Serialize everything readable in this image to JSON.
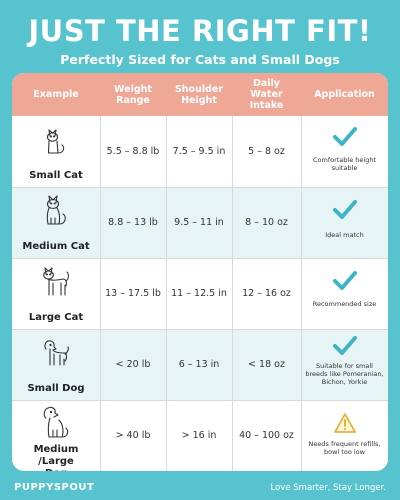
{
  "header": {
    "title": "JUST THE RIGHT FIT!",
    "subtitle": "Perfectly Sized for Cats and Small Dogs"
  },
  "table": {
    "columns": [
      "Example",
      "Weight Range",
      "Shoulder Height",
      "Daily Water Intake",
      "Application"
    ],
    "rows": [
      {
        "example": "Small Cat",
        "icon": "small-cat-icon",
        "weight": "5.5 – 8.8 lb",
        "height": "7.5 – 9.5 in",
        "water": "5 – 8 oz",
        "status": "check",
        "note": "Comfortable height suitable"
      },
      {
        "example": "Medium Cat",
        "icon": "medium-cat-icon",
        "weight": "8.8 – 13 lb",
        "height": "9.5 – 11 in",
        "water": "8 – 10 oz",
        "status": "check",
        "note": "Ideal match"
      },
      {
        "example": "Large Cat",
        "icon": "large-cat-icon",
        "weight": "13 – 17.5 lb",
        "height": "11 – 12.5 in",
        "water": "12 – 16 oz",
        "status": "check",
        "note": "Recommended size"
      },
      {
        "example": "Small Dog",
        "icon": "small-dog-icon",
        "weight": "< 20 lb",
        "height": "6 – 13 in",
        "water": "< 18 oz",
        "status": "check",
        "note": "Suitable for small breeds like Pomeranian, Bichon, Yorkie"
      },
      {
        "example": "Medium /Large Dog",
        "icon": "large-dog-icon",
        "weight": "> 40 lb",
        "height": "> 16 in",
        "water": "40 – 100 oz",
        "status": "warning",
        "note": "Needs frequent refills, bowl too low"
      }
    ]
  },
  "footer": {
    "brand": "PUPPYSPOUT",
    "slogan": "Love Smarter, Stay Longer."
  },
  "colors": {
    "background": "#56c3cf",
    "header_row": "#f0a896",
    "alt_row": "#e6f4f6",
    "check": "#3fb4c4",
    "warning": "#e8b23a"
  }
}
